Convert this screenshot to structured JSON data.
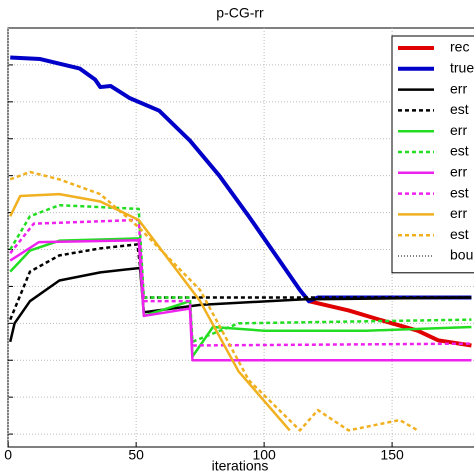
{
  "chart_data": {
    "type": "line",
    "title": "p-CG-rr",
    "xlabel": "iterations",
    "xlim": [
      -3,
      182
    ],
    "xticks": [
      0,
      50,
      100,
      150
    ],
    "ylim": [
      -0.35,
      11
    ],
    "yticks": [
      0,
      1,
      2,
      3,
      4,
      5,
      6,
      7,
      8,
      9,
      10
    ],
    "grid": true,
    "legend": "upper right",
    "series": [
      {
        "name": "rec",
        "color": "#e00000",
        "style": "solid",
        "width": 4,
        "x": [
          117.5,
          133,
          145,
          160,
          168,
          181
        ],
        "values": [
          3.6,
          3.35,
          3.1,
          2.8,
          2.54,
          2.4
        ]
      },
      {
        "name": "true",
        "color": "#0000c8",
        "style": "solid",
        "width": 4,
        "x": [
          0.8,
          12.5,
          28,
          34,
          36,
          40,
          47.5,
          59,
          71,
          82.5,
          94,
          106,
          114,
          117.5,
          121,
          181
        ],
        "values": [
          10.2,
          10.16,
          9.9,
          9.6,
          9.4,
          9.43,
          9.1,
          8.76,
          7.95,
          7.0,
          5.9,
          4.7,
          3.9,
          3.6,
          3.7,
          3.7
        ]
      },
      {
        "name": "err",
        "color": "#000000",
        "style": "solid",
        "width": 2.5,
        "x": [
          0.8,
          2.5,
          8.5,
          20,
          36,
          51.5,
          53,
          75,
          115,
          181
        ],
        "values": [
          2.5,
          3.0,
          3.6,
          4.16,
          4.38,
          4.5,
          3.3,
          3.5,
          3.65,
          3.7
        ]
      },
      {
        "name": "est",
        "color": "#000000",
        "style": "dashed",
        "width": 2.5,
        "x": [
          0.8,
          8.5,
          20,
          36,
          50.5,
          53,
          181
        ],
        "values": [
          3.1,
          4.4,
          4.84,
          5.03,
          5.14,
          3.7,
          3.7
        ]
      },
      {
        "name": "err",
        "color": "#22dd22",
        "style": "solid",
        "width": 2.5,
        "x": [
          0.8,
          8.5,
          20,
          51,
          53,
          71,
          72,
          80,
          100,
          140,
          181
        ],
        "values": [
          4.4,
          4.97,
          5.24,
          5.3,
          3.2,
          3.6,
          2.1,
          2.9,
          2.8,
          2.8,
          2.9
        ]
      },
      {
        "name": "est",
        "color": "#22dd22",
        "style": "dashed",
        "width": 2.5,
        "x": [
          0.8,
          8.5,
          20,
          51,
          53,
          71,
          72,
          90,
          181
        ],
        "values": [
          5.0,
          5.9,
          6.2,
          6.1,
          3.7,
          3.7,
          2.5,
          3.0,
          3.1
        ]
      },
      {
        "name": "err",
        "color": "#ee22ee",
        "style": "solid",
        "width": 2.5,
        "x": [
          0.8,
          12,
          51,
          53,
          71,
          72,
          181
        ],
        "values": [
          4.7,
          5.2,
          5.25,
          3.2,
          3.4,
          2.0,
          2.0
        ]
      },
      {
        "name": "est",
        "color": "#ee22ee",
        "style": "dashed",
        "width": 2.5,
        "x": [
          0.8,
          10,
          51,
          53,
          71,
          72,
          181
        ],
        "values": [
          4.9,
          5.7,
          5.8,
          3.6,
          3.6,
          2.4,
          2.45
        ]
      },
      {
        "name": "err",
        "color": "#f0b020",
        "style": "solid",
        "width": 2.5,
        "x": [
          0.8,
          4.7,
          20,
          36,
          51,
          75,
          90,
          110
        ],
        "values": [
          5.9,
          6.45,
          6.5,
          6.3,
          5.8,
          3.6,
          1.7,
          0.1
        ]
      },
      {
        "name": "est",
        "color": "#f0b020",
        "style": "dashed",
        "width": 2.5,
        "x": [
          0.8,
          8.5,
          20,
          36,
          51,
          75,
          94,
          114,
          121,
          133,
          153,
          160
        ],
        "values": [
          6.9,
          7.1,
          6.9,
          6.5,
          5.6,
          3.9,
          1.46,
          0.1,
          0.65,
          0.1,
          0.38,
          0.1
        ]
      },
      {
        "name": "bou",
        "color": "#000000",
        "style": "dotted",
        "width": 1,
        "x": [],
        "values": []
      }
    ]
  }
}
